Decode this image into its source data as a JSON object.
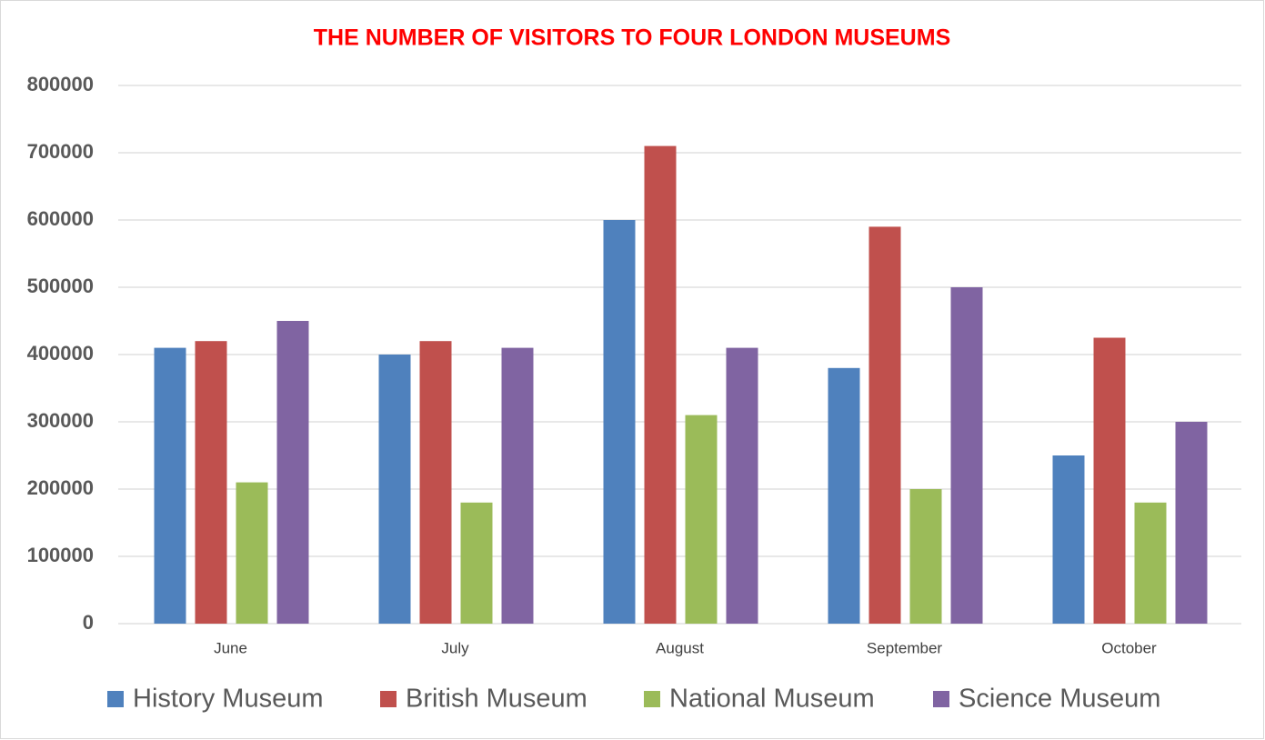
{
  "chart_data": {
    "type": "bar",
    "title": "THE NUMBER OF VISITORS TO FOUR LONDON MUSEUMS",
    "categories": [
      "June",
      "July",
      "August",
      "September",
      "October"
    ],
    "series": [
      {
        "name": "History Museum",
        "color": "#4f81bd",
        "values": [
          410000,
          400000,
          600000,
          380000,
          250000
        ]
      },
      {
        "name": "British Museum",
        "color": "#c0504d",
        "values": [
          420000,
          420000,
          710000,
          590000,
          425000
        ]
      },
      {
        "name": "National Museum",
        "color": "#9bbb59",
        "values": [
          210000,
          180000,
          310000,
          200000,
          180000
        ]
      },
      {
        "name": "Science Museum",
        "color": "#8064a2",
        "values": [
          450000,
          410000,
          410000,
          500000,
          300000
        ]
      }
    ],
    "ylim": [
      0,
      800000
    ],
    "yticks": [
      0,
      100000,
      200000,
      300000,
      400000,
      500000,
      600000,
      700000,
      800000
    ],
    "grid": true,
    "legend": "bottom"
  }
}
